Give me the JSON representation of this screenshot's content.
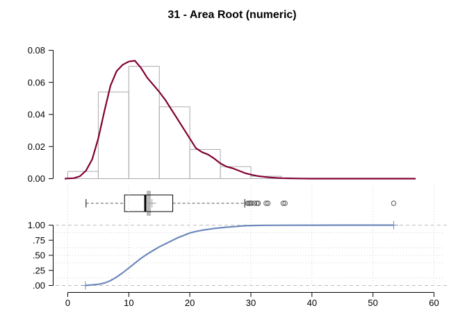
{
  "chart_data": [
    {
      "type": "histogram",
      "title": "31 - Area Root (numeric)",
      "bins": [
        {
          "x0": 0,
          "x1": 5,
          "density": 0.0045
        },
        {
          "x0": 5,
          "x1": 10,
          "density": 0.054
        },
        {
          "x0": 10,
          "x1": 15,
          "density": 0.07
        },
        {
          "x0": 15,
          "x1": 20,
          "density": 0.0448
        },
        {
          "x0": 20,
          "x1": 25,
          "density": 0.0182
        },
        {
          "x0": 25,
          "x1": 30,
          "density": 0.0075
        },
        {
          "x0": 30,
          "x1": 35,
          "density": 0.0015
        }
      ],
      "density_curve": {
        "x": [
          -0.5,
          1,
          2,
          3,
          4,
          5,
          6,
          7,
          8,
          9,
          10,
          11,
          12,
          13,
          14,
          15,
          16,
          17,
          18,
          19,
          20,
          21,
          22,
          23,
          24,
          25,
          26,
          27,
          28,
          29,
          30,
          31,
          32,
          33,
          34,
          35,
          36,
          38,
          40,
          45,
          50,
          55,
          57
        ],
        "y": [
          0.0,
          0.0003,
          0.0015,
          0.005,
          0.012,
          0.025,
          0.042,
          0.058,
          0.067,
          0.071,
          0.073,
          0.0735,
          0.069,
          0.063,
          0.0585,
          0.054,
          0.049,
          0.043,
          0.037,
          0.031,
          0.025,
          0.019,
          0.0165,
          0.015,
          0.0125,
          0.0095,
          0.0075,
          0.0065,
          0.005,
          0.0035,
          0.0025,
          0.0017,
          0.0012,
          0.0008,
          0.0005,
          0.0003,
          0.0002,
          0.0001,
          0.0,
          0.0,
          0.0,
          0.0,
          0.0
        ]
      },
      "ylim": [
        0,
        0.08
      ],
      "y_ticks": [
        "0.00",
        "0.02",
        "0.04",
        "0.06",
        "0.08"
      ],
      "colors": {
        "bars": "#aaaaaa",
        "curve": "#800033"
      }
    },
    {
      "type": "boxplot",
      "whisker_low": 3,
      "q1": 9.3,
      "median": 12.7,
      "mean": 13.8,
      "q3": 17.2,
      "whisker_high": 29,
      "outliers": [
        29.5,
        29.7,
        29.9,
        30.1,
        30.6,
        31,
        31.2,
        32.5,
        32.8,
        35.3,
        35.6,
        53.4
      ],
      "colors": {
        "box": "#000000",
        "median_band": "#bbbbbb"
      }
    },
    {
      "type": "line",
      "subtype": "ecdf",
      "x": [
        2.9,
        5,
        6,
        7,
        8,
        9,
        10,
        11,
        12,
        13,
        14,
        15,
        16,
        17,
        18,
        19,
        20,
        21,
        22,
        24,
        26,
        28,
        29,
        30,
        32,
        35,
        40,
        45,
        50,
        53.4
      ],
      "y": [
        0.0,
        0.02,
        0.04,
        0.08,
        0.14,
        0.21,
        0.29,
        0.37,
        0.45,
        0.52,
        0.58,
        0.64,
        0.69,
        0.74,
        0.79,
        0.83,
        0.87,
        0.895,
        0.915,
        0.945,
        0.965,
        0.98,
        0.99,
        0.993,
        0.996,
        0.998,
        0.999,
        1.0,
        1.0,
        1.0
      ],
      "xlim": [
        0,
        60
      ],
      "x_ticks": [
        "0",
        "10",
        "20",
        "30",
        "40",
        "50",
        "60"
      ],
      "y_ticks": [
        ".00",
        ".25",
        ".50",
        ".75",
        "1.00"
      ],
      "colors": {
        "curve": "#6e88bb",
        "grid": "#bbbbbb"
      }
    }
  ]
}
